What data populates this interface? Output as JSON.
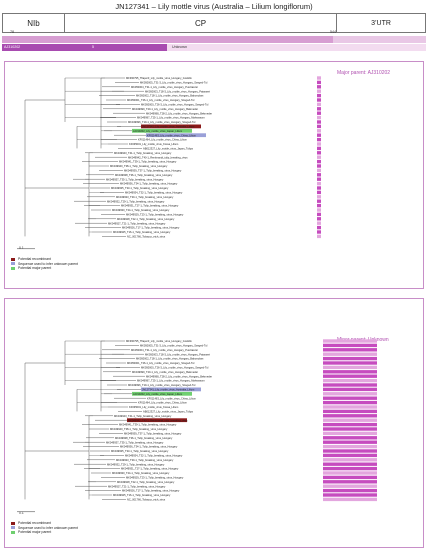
{
  "title": "JN127341 – Lily mottle virus (Australia – Lilium longiflorum)",
  "genome": {
    "nib": "NIb",
    "cp": "CP",
    "utr": "3’UTR"
  },
  "bars": {
    "start": "78",
    "end": "544",
    "parent_id": "AJ310202",
    "parent_value": "5",
    "unknown": "Unknown"
  },
  "panels": [
    {
      "title": "Major parent: AJ310202",
      "scale": "0.1",
      "legend": [
        {
          "label": "Potential recombinant",
          "color": "#8b1a1a"
        },
        {
          "label": "Sequence used to infer unknown parent",
          "color": "#9aa0d8"
        },
        {
          "label": "Potential major parent",
          "color": "#6fcf6f"
        }
      ]
    },
    {
      "title": "Minor parent: Unknown",
      "scale": "0.1",
      "legend": [
        {
          "label": "Potential recombinant",
          "color": "#8b1a1a"
        },
        {
          "label": "Sequence used to infer unknown parent",
          "color": "#9aa0d8"
        },
        {
          "label": "Potential major parent",
          "color": "#6fcf6f"
        }
      ]
    }
  ],
  "colors": {
    "accent": "#b050b0",
    "stripe": "#c64cbf",
    "stripe_light": "#e3a6de"
  },
  "taxa": [
    "MF360795_Tflaper3_Lily_mottle_virus_Hungary_Godollo",
    "MK050005_T31-3_Lily_mottle_virus_Hungary_Szeged-Tul",
    "MK050004_T31-1_Lily_mottle_virus_Hungary_Pusztaszer",
    "MK050003_T18-3_Lily_mottle_virus_Hungary_Pataszeri",
    "MK050002_T18-1_Lily_mottle_virus_Hungary_Babonyban",
    "MK050001_T26-1_Lily_mottle_virus_Hungary_Szeged-Tul",
    "MK050000_T26-3_Lily_mottle_virus_Hungary_Szeged-Tul",
    "MK049999_T20-1_Lily_mottle_virus_Hungary_Bekmeder",
    "MK049998_T28-2_Lily_mottle_virus_Hungary_Bekmeder",
    "MK049997_T25-1_Lily_mottle_virus_Hungary_Mahrassom",
    "MK049996_T19-1_Lily_mottle_virus_Hungary_Szeged-Tul",
    "JN127341_Lily_mottle_virus_Australia_Lilium",
    "AJ310202_Lily_mottle_virus_Japan_Lilium",
    "KF011463_Lily_mottle_virus_China_Lilium",
    "KF011464_Lily_mottle_virus_China_Lilium",
    "KF035001_Lily_mottle_virus_Korea_Lilium",
    "AB012327_Lily_mottle_virus_Japan_Tulipa",
    "MK049943_T41-1_Tulip_breaking_virus_Hungary",
    "MK049942_T40-1_Rembrandt_tulip_breaking_virus",
    "MK049941_T39-1_Tulip_breaking_virus_Hungary",
    "MK049940_T38-1_Tulip_breaking_virus_Hungary",
    "MK049939_T37-1_Tulip_breaking_virus_Hungary",
    "MK049938_T36-1_Tulip_breaking_virus_Hungary",
    "MK049937_T35-1_Tulip_breaking_virus_Hungary",
    "MK049936_T34-1_Tulip_breaking_virus_Hungary",
    "MK049935_T33-1_Tulip_breaking_virus_Hungary",
    "MK049934_T32-1_Tulip_breaking_virus_Hungary",
    "MK049933_T30-1_Tulip_breaking_virus_Hungary",
    "MK049932_T29-1_Tulip_breaking_virus_Hungary",
    "MK049931_T27-1_Tulip_breaking_virus_Hungary",
    "MK049930_T24-1_Tulip_breaking_virus_Hungary",
    "MK049929_T23-1_Tulip_breaking_virus_Hungary",
    "MK049928_T22-1_Tulip_breaking_virus_Hungary",
    "MK049927_T21-1_Tulip_breaking_virus_Hungary",
    "MK049926_T17-1_Tulip_breaking_virus_Hungary",
    "MK049925_T16-1_Tulip_breaking_virus_Hungary",
    "NC_001766_Tobacco_etch_virus"
  ]
}
